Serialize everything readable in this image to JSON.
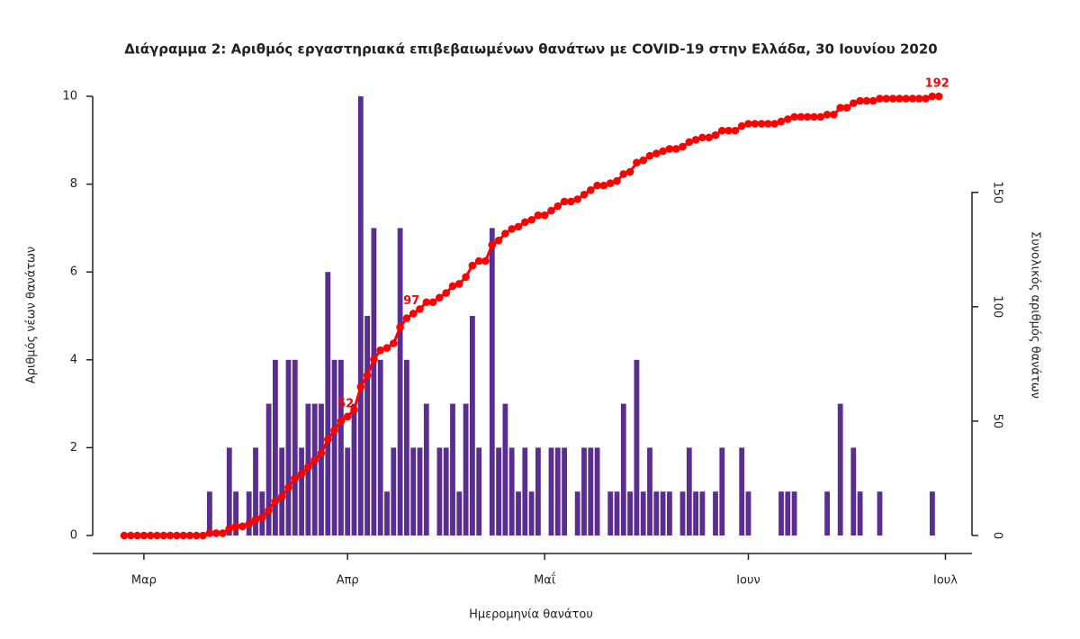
{
  "chart_data": {
    "type": "bar",
    "title": "Διάγραμμα 2: Αριθμός εργαστηριακά επιβεβαιωμένων θανάτων με COVID-19 στην Ελλάδα, 30 Ιουνίου 2020",
    "xlabel": "Ημερομηνία θανάτου",
    "ylabel": "Αριθμός νέων θανάτων",
    "y2label": "Συνολικός αριθμός θανάτων",
    "categories": [
      null,
      null,
      null,
      "Μαρ",
      null,
      null,
      null,
      null,
      null,
      null,
      null,
      null,
      null,
      null,
      null,
      null,
      null,
      null,
      null,
      null,
      null,
      null,
      null,
      null,
      null,
      null,
      null,
      null,
      null,
      null,
      null,
      null,
      null,
      null,
      "Απρ",
      null,
      null,
      null,
      null,
      null,
      null,
      null,
      null,
      null,
      null,
      null,
      null,
      null,
      null,
      null,
      null,
      null,
      null,
      null,
      null,
      null,
      null,
      null,
      null,
      null,
      null,
      null,
      null,
      null,
      "Μαΐ",
      null,
      null,
      null,
      null,
      null,
      null,
      null,
      null,
      null,
      null,
      null,
      null,
      null,
      null,
      null,
      null,
      null,
      null,
      null,
      null,
      null,
      null,
      null,
      null,
      null,
      null,
      null,
      null,
      null,
      null,
      "Ιουν",
      null,
      null,
      null,
      null,
      null,
      null,
      null,
      null,
      null,
      null,
      null,
      null,
      null,
      null,
      null,
      null,
      null,
      null,
      null,
      null,
      null,
      null,
      null,
      null,
      null,
      null,
      null,
      null,
      null,
      "Ιουλ"
    ],
    "series": [
      {
        "type": "bar",
        "color": "#5a2d91",
        "values": [
          0,
          0,
          0,
          0,
          0,
          0,
          0,
          0,
          0,
          0,
          0,
          0,
          0,
          1,
          0,
          0,
          2,
          1,
          0,
          1,
          2,
          1,
          3,
          4,
          2,
          4,
          4,
          2,
          3,
          3,
          3,
          6,
          4,
          4,
          2,
          3,
          10,
          5,
          7,
          4,
          1,
          2,
          7,
          4,
          2,
          2,
          3,
          0,
          2,
          2,
          3,
          1,
          3,
          5,
          2,
          0,
          7,
          2,
          3,
          2,
          1,
          2,
          1,
          2,
          0,
          2,
          2,
          2,
          0,
          1,
          2,
          2,
          2,
          0,
          1,
          1,
          3,
          1,
          4,
          1,
          2,
          1,
          1,
          1,
          0,
          1,
          2,
          1,
          1,
          0,
          1,
          2,
          0,
          0,
          2,
          1,
          0,
          0,
          0,
          0,
          1,
          1,
          1,
          0,
          0,
          0,
          0,
          1,
          0,
          3,
          0,
          2,
          1,
          0,
          0,
          1,
          0,
          0,
          0,
          0,
          0,
          0,
          0,
          1,
          0,
          null
        ]
      },
      {
        "type": "line",
        "axis": "y2",
        "color": "#ff0000",
        "values": [
          0,
          0,
          0,
          0,
          0,
          0,
          0,
          0,
          0,
          0,
          0,
          0,
          0,
          1,
          1,
          1,
          3,
          4,
          4,
          5,
          7,
          8,
          11,
          15,
          17,
          21,
          25,
          27,
          30,
          33,
          36,
          42,
          46,
          50,
          52,
          55,
          65,
          70,
          77,
          81,
          82,
          84,
          91,
          95,
          97,
          99,
          102,
          102,
          104,
          106,
          109,
          110,
          113,
          118,
          120,
          120,
          127,
          129,
          132,
          134,
          135,
          137,
          138,
          140,
          140,
          142,
          144,
          146,
          146,
          147,
          149,
          151,
          153,
          153,
          154,
          155,
          158,
          159,
          163,
          164,
          166,
          167,
          168,
          169,
          169,
          170,
          172,
          173,
          174,
          174,
          175,
          177,
          177,
          177,
          179,
          180,
          180,
          180,
          180,
          180,
          181,
          182,
          183,
          183,
          183,
          183,
          183,
          184,
          184,
          187,
          187,
          189,
          190,
          190,
          190,
          191,
          191,
          191,
          191,
          191,
          191,
          191,
          191,
          192,
          192,
          null
        ],
        "value_labels": [
          null,
          null,
          null,
          null,
          null,
          null,
          null,
          null,
          null,
          null,
          null,
          null,
          null,
          null,
          null,
          null,
          null,
          null,
          null,
          null,
          null,
          null,
          null,
          null,
          null,
          null,
          null,
          null,
          null,
          null,
          null,
          null,
          null,
          null,
          "52",
          null,
          null,
          null,
          null,
          null,
          null,
          null,
          null,
          null,
          "97",
          null,
          null,
          null,
          null,
          null,
          null,
          null,
          null,
          null,
          null,
          null,
          null,
          null,
          null,
          null,
          null,
          null,
          null,
          null,
          null,
          null,
          null,
          null,
          null,
          null,
          null,
          null,
          null,
          null,
          null,
          null,
          null,
          null,
          null,
          null,
          null,
          null,
          null,
          null,
          null,
          null,
          null,
          null,
          null,
          null,
          null,
          null,
          null,
          null,
          null,
          null,
          null,
          null,
          null,
          null,
          null,
          null,
          null,
          null,
          null,
          null,
          null,
          null,
          null,
          null,
          null,
          null,
          null,
          null,
          null,
          null,
          null,
          null,
          null,
          null,
          null,
          null,
          null,
          null,
          "192",
          null
        ]
      }
    ],
    "ylim": [
      0,
      10
    ],
    "yticks": [
      0,
      2,
      4,
      6,
      8,
      10
    ],
    "y2lim": [
      0,
      192
    ],
    "y2ticks": [
      0,
      50,
      100,
      150
    ]
  }
}
